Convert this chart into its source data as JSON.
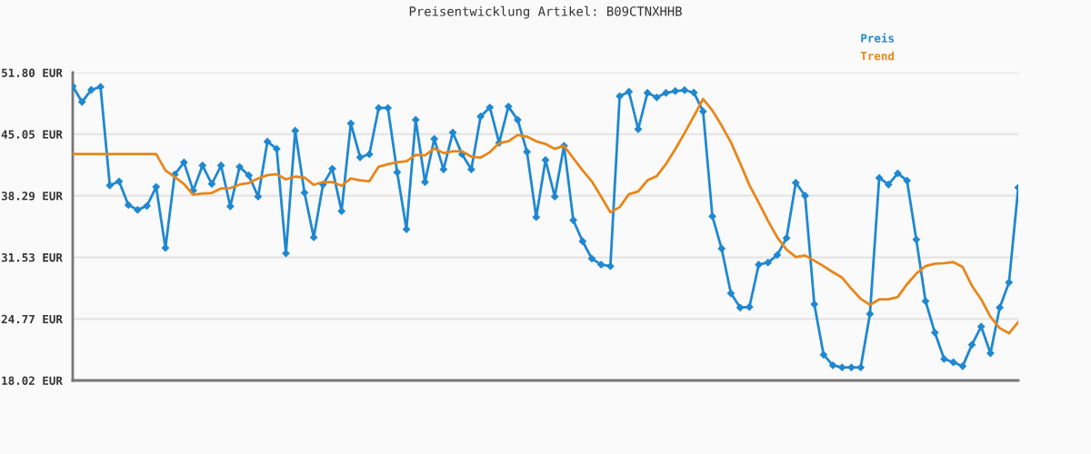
{
  "chart_data": {
    "type": "line",
    "title": "Preisentwicklung Artikel: B09CTNXHHB",
    "categories": [
      null,
      null,
      null,
      null,
      null,
      null,
      null,
      null,
      null,
      null,
      null,
      null,
      null,
      null,
      null,
      null,
      null,
      null,
      null,
      null,
      null,
      null,
      null,
      null,
      null,
      null,
      null,
      null,
      null,
      null,
      null,
      null,
      null,
      null,
      null,
      null,
      null,
      null,
      null,
      null,
      null,
      null,
      null,
      null,
      null,
      null,
      null,
      null,
      null,
      null,
      null,
      null,
      null,
      null,
      null,
      null,
      null,
      null,
      null,
      null,
      null,
      null,
      null,
      null,
      null,
      null,
      null,
      null,
      null,
      null,
      null,
      null,
      null,
      null,
      null,
      null,
      null,
      null,
      null,
      null,
      null,
      null,
      null,
      null,
      null,
      null,
      null,
      null,
      null,
      null,
      null,
      null,
      null,
      null,
      null,
      null,
      null,
      null,
      null,
      null,
      null,
      null,
      null
    ],
    "series": [
      {
        "name": "Preis",
        "color": "#1f88d0",
        "marker": "diamond",
        "values": [
          50.31,
          48.58,
          49.91,
          50.24,
          39.42,
          39.86,
          37.27,
          36.74,
          37.17,
          39.26,
          32.56,
          40.62,
          41.95,
          38.86,
          41.61,
          39.59,
          41.61,
          37.13,
          41.45,
          40.52,
          38.2,
          44.23,
          43.44,
          31.96,
          45.43,
          38.63,
          33.72,
          39.52,
          41.25,
          36.6,
          46.23,
          42.51,
          42.84,
          47.92,
          47.92,
          40.86,
          34.61,
          46.62,
          39.79,
          44.53,
          41.18,
          45.23,
          42.84,
          41.18,
          46.99,
          47.98,
          44.1,
          48.08,
          46.62,
          43.11,
          35.94,
          42.21,
          38.2,
          43.77,
          35.61,
          33.29,
          31.39,
          30.73,
          30.56,
          49.21,
          49.71,
          45.6,
          49.58,
          49.08,
          49.58,
          49.78,
          49.88,
          49.61,
          47.55,
          36.04,
          32.49,
          27.58,
          26.02,
          26.09,
          30.73,
          30.96,
          31.79,
          33.65,
          39.72,
          38.3,
          26.38,
          20.84,
          19.68,
          19.45,
          19.45,
          19.45,
          25.32,
          40.25,
          39.52,
          40.75,
          39.95,
          33.48,
          26.72,
          23.27,
          20.38,
          20.01,
          19.58,
          21.94,
          23.93,
          21.01,
          26.02,
          28.77,
          39.19
        ]
      },
      {
        "name": "Trend",
        "color": "#e8861a",
        "marker": "none",
        "values": [
          42.87,
          42.87,
          42.87,
          42.87,
          42.87,
          42.87,
          42.87,
          42.87,
          42.87,
          42.87,
          41.08,
          40.35,
          39.59,
          38.4,
          38.53,
          38.59,
          39.09,
          39.13,
          39.52,
          39.69,
          40.19,
          40.55,
          40.65,
          40.09,
          40.39,
          40.29,
          39.49,
          39.79,
          39.79,
          39.39,
          40.19,
          39.99,
          39.89,
          41.48,
          41.75,
          41.98,
          42.08,
          42.78,
          42.71,
          43.47,
          42.97,
          43.17,
          43.17,
          42.58,
          42.48,
          43.07,
          44.07,
          44.27,
          44.96,
          44.77,
          44.27,
          43.97,
          43.44,
          43.77,
          42.41,
          41.08,
          39.86,
          38.2,
          36.47,
          37.04,
          38.46,
          38.76,
          39.99,
          40.45,
          41.78,
          43.4,
          45.16,
          47.02,
          48.91,
          47.65,
          45.99,
          44.17,
          41.85,
          39.46,
          37.53,
          35.54,
          33.72,
          32.39,
          31.56,
          31.73,
          31.16,
          30.56,
          29.9,
          29.3,
          28.08,
          26.98,
          26.32,
          26.92,
          26.92,
          27.18,
          28.58,
          29.74,
          30.56,
          30.83,
          30.89,
          31.0,
          30.47,
          28.41,
          26.92,
          25.0,
          23.76,
          23.2,
          24.43
        ]
      }
    ],
    "ylim": [
      18.02,
      51.8
    ],
    "yticks": [
      {
        "value": 18.02,
        "label": "18.02 EUR"
      },
      {
        "value": 24.77,
        "label": "24.77 EUR"
      },
      {
        "value": 31.53,
        "label": "31.53 EUR"
      },
      {
        "value": 38.29,
        "label": "38.29 EUR"
      },
      {
        "value": 45.05,
        "label": "45.05 EUR"
      },
      {
        "value": 51.8,
        "label": "51.80 EUR"
      }
    ],
    "grid": "y",
    "legend": "top right",
    "line_style": "solid"
  }
}
